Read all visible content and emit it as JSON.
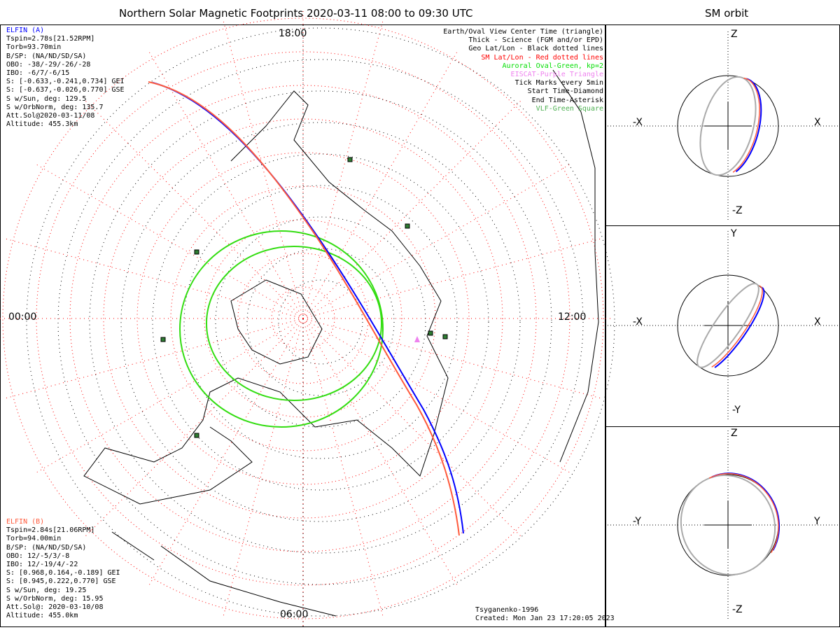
{
  "title": "Northern Solar Magnetic Footprints 2020-03-11 08:00 to 09:30 UTC",
  "orbit_title": "SM orbit",
  "map": {
    "top_time": "18:00",
    "bottom_time": "06:00",
    "left_time": "00:00",
    "right_time": "12:00"
  },
  "elfin_a": {
    "name": "ELFIN (A)",
    "color": "#0000ff",
    "lines": [
      "Tspin=2.78s[21.52RPM]",
      "Torb=93.70min",
      "B/SP: (NA/ND/SD/SA)",
      "OBO: -38/-29/-26/-28",
      "IBO: -6/7/-6/15",
      "S: [-0.633,-0.241,0.734] GEI",
      "S: [-0.637,-0.026,0.770] GSE",
      "S w/Sun, deg: 129.5",
      "S w/OrbNorm, deg: 135.7",
      "Att.Sol@2020-03-11/08",
      "Altitude: 455.3km"
    ]
  },
  "elfin_b": {
    "name": "ELFIN (B)",
    "color": "#ff5a3c",
    "lines": [
      "Tspin=2.84s[21.06RPM]",
      "Torb=94.00min",
      "B/SP: (NA/ND/SD/SA)",
      "OBO: 12/-5/3/-8",
      "IBO: 12/-19/4/-22",
      "S: [0.968,0.164,-0.189] GEI",
      "S: [0.945,0.222,0.770] GSE",
      "S w/Sun, deg: 19.25",
      "S w/OrbNorm, deg: 15.95",
      "Att.Sol@: 2020-03-10/08",
      "Altitude: 455.0km"
    ]
  },
  "legend": [
    {
      "text": "Earth/Oval View Center Time (triangle)",
      "color": "#000000"
    },
    {
      "text": "Thick - Science (FGM and/or EPD)",
      "color": "#000000"
    },
    {
      "text": "Geo Lat/Lon - Black dotted lines",
      "color": "#000000"
    },
    {
      "text": "SM Lat/Lon - Red dotted lines",
      "color": "#ff0000"
    },
    {
      "text": "Auroral Oval-Green, kp=2",
      "color": "#00dd00"
    },
    {
      "text": "EISCAT-Purple Triangle",
      "color": "#ee82ee"
    },
    {
      "text": "Tick Marks every 5min",
      "color": "#000000"
    },
    {
      "text": "Start Time-Diamond",
      "color": "#000000"
    },
    {
      "text": "End Time-Asterisk",
      "color": "#000000"
    },
    {
      "text": "VLF-Green Square",
      "color": "#4caf50"
    }
  ],
  "footer": {
    "model": "Tsyganenko-1996",
    "created": "Created: Mon Jan 23 17:20:05 2023"
  },
  "panels": [
    {
      "top": "Z",
      "bottom": "-Z",
      "left": "-X",
      "right": "X"
    },
    {
      "top": "Y",
      "bottom": "-Y",
      "left": "-X",
      "right": "X"
    },
    {
      "top": "Z",
      "bottom": "-Z",
      "left": "-Y",
      "right": "Y"
    }
  ]
}
